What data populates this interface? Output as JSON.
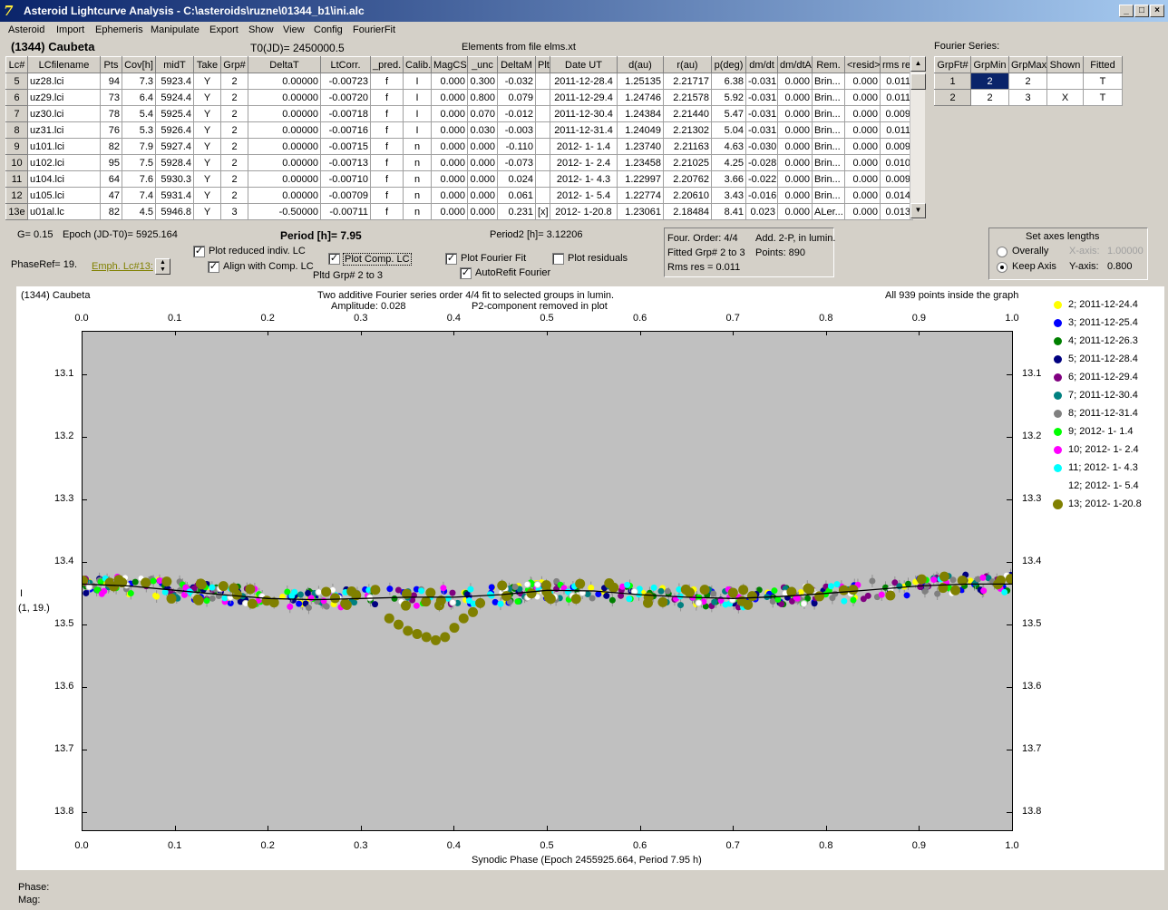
{
  "window": {
    "title": "Asteroid Lightcurve Analysis - C:\\asteroids\\ruzne\\01344_b1\\ini.alc",
    "min": "_",
    "max": "□",
    "close": "×"
  },
  "menu": [
    "Asteroid",
    "Import",
    "Ephemeris",
    "Manipulate",
    "Export",
    "Show",
    "View",
    "Config",
    "FourierFit"
  ],
  "header": {
    "object": "(1344) Caubeta",
    "t0": "T0(JD)= 2450000.5",
    "elements": "Elements from file elms.xt",
    "fourier_label": "Fourier Series:"
  },
  "lc_table": {
    "columns": [
      "Lc#",
      "LCfilename",
      "Pts",
      "Cov[h]",
      "midT",
      "Take",
      "Grp#",
      "DeltaT",
      "LtCorr.",
      "_pred.",
      "Calib.",
      "MagCS",
      "_unc",
      "DeltaM",
      "Plt",
      "Date UT",
      "d(au)",
      "r(au)",
      "p(deg)",
      "dm/dt",
      "dm/dtA",
      "Rem.",
      "<resid>",
      "rms res"
    ],
    "rows": [
      [
        "5",
        "uz28.lci",
        "94",
        "7.3",
        "5923.4",
        "Y",
        "2",
        "0.00000",
        "-0.00723",
        "f",
        "I",
        "0.000",
        "0.300",
        "-0.032",
        "",
        "2011-12-28.4",
        "1.25135",
        "2.21717",
        "6.38",
        "-0.031",
        "0.000",
        "Brin...",
        "0.000",
        "0.011"
      ],
      [
        "6",
        "uz29.lci",
        "73",
        "6.4",
        "5924.4",
        "Y",
        "2",
        "0.00000",
        "-0.00720",
        "f",
        "I",
        "0.000",
        "0.800",
        "0.079",
        "",
        "2011-12-29.4",
        "1.24746",
        "2.21578",
        "5.92",
        "-0.031",
        "0.000",
        "Brin...",
        "0.000",
        "0.011"
      ],
      [
        "7",
        "uz30.lci",
        "78",
        "5.4",
        "5925.4",
        "Y",
        "2",
        "0.00000",
        "-0.00718",
        "f",
        "I",
        "0.000",
        "0.070",
        "-0.012",
        "",
        "2011-12-30.4",
        "1.24384",
        "2.21440",
        "5.47",
        "-0.031",
        "0.000",
        "Brin...",
        "0.000",
        "0.009"
      ],
      [
        "8",
        "uz31.lci",
        "76",
        "5.3",
        "5926.4",
        "Y",
        "2",
        "0.00000",
        "-0.00716",
        "f",
        "I",
        "0.000",
        "0.030",
        "-0.003",
        "",
        "2011-12-31.4",
        "1.24049",
        "2.21302",
        "5.04",
        "-0.031",
        "0.000",
        "Brin...",
        "0.000",
        "0.011"
      ],
      [
        "9",
        "u101.lci",
        "82",
        "7.9",
        "5927.4",
        "Y",
        "2",
        "0.00000",
        "-0.00715",
        "f",
        "n",
        "0.000",
        "0.000",
        "-0.110",
        "",
        "2012- 1- 1.4",
        "1.23740",
        "2.21163",
        "4.63",
        "-0.030",
        "0.000",
        "Brin...",
        "0.000",
        "0.009"
      ],
      [
        "10",
        "u102.lci",
        "95",
        "7.5",
        "5928.4",
        "Y",
        "2",
        "0.00000",
        "-0.00713",
        "f",
        "n",
        "0.000",
        "0.000",
        "-0.073",
        "",
        "2012- 1- 2.4",
        "1.23458",
        "2.21025",
        "4.25",
        "-0.028",
        "0.000",
        "Brin...",
        "0.000",
        "0.010"
      ],
      [
        "11",
        "u104.lci",
        "64",
        "7.6",
        "5930.3",
        "Y",
        "2",
        "0.00000",
        "-0.00710",
        "f",
        "n",
        "0.000",
        "0.000",
        "0.024",
        "",
        "2012- 1- 4.3",
        "1.22997",
        "2.20762",
        "3.66",
        "-0.022",
        "0.000",
        "Brin...",
        "0.000",
        "0.009"
      ],
      [
        "12",
        "u105.lci",
        "47",
        "7.4",
        "5931.4",
        "Y",
        "2",
        "0.00000",
        "-0.00709",
        "f",
        "n",
        "0.000",
        "0.000",
        "0.061",
        "",
        "2012- 1- 5.4",
        "1.22774",
        "2.20610",
        "3.43",
        "-0.016",
        "0.000",
        "Brin...",
        "0.000",
        "0.014"
      ],
      [
        "13e",
        "u01al.lc",
        "82",
        "4.5",
        "5946.8",
        "Y",
        "3",
        "-0.50000",
        "-0.00711",
        "f",
        "n",
        "0.000",
        "0.000",
        "0.231",
        "[x]",
        "2012- 1-20.8",
        "1.23061",
        "2.18484",
        "8.41",
        "0.023",
        "0.000",
        "ALer...",
        "0.000",
        "0.013"
      ]
    ]
  },
  "fourier_table": {
    "columns": [
      "GrpFt#",
      "GrpMin",
      "GrpMax",
      "Shown",
      "Fitted"
    ],
    "rows": [
      [
        "1",
        "2",
        "2",
        "",
        "T"
      ],
      [
        "2",
        "2",
        "3",
        "X",
        "T"
      ]
    ]
  },
  "params": {
    "g": "G= 0.15",
    "epoch": "Epoch (JD-T0)= 5925.164",
    "period": "Period [h]= 7.95",
    "period2": "Period2 [h]= 3.12206",
    "phaseref": "PhaseRef= 19.",
    "emph": "Emph. Lc#13:",
    "plot_reduced": "Plot reduced indiv. LC",
    "align": "Align with Comp. LC",
    "plot_comp": "Plot Comp. LC",
    "pltd_grp": "Pltd Grp#  2   to   3",
    "plot_fourier": "Plot Fourier Fit",
    "autorefit": "AutoRefit Fourier",
    "plot_residuals": "Plot residuals"
  },
  "fit_info": {
    "order": "Four. Order:  4/4",
    "add": "Add. 2-P, in lumin.",
    "fitted": "Fitted Grp# 2 to 3",
    "points": "Points: 890",
    "rms": "Rms res    = 0.011"
  },
  "axes_box": {
    "title": "Set axes lengths",
    "overally": "Overally",
    "keep": "Keep Axis",
    "xlabel": "X-axis:",
    "xval": "1.00000",
    "ylabel": "Y-axis:",
    "yval": "0.800"
  },
  "plot": {
    "object": "(1344) Caubeta",
    "line1": "Two additive Fourier series order 4/4 fit to selected groups in lumin.",
    "amplitude": "Amplitude: 0.028",
    "p2": "P2-component removed in plot",
    "inside": "All 939 points inside the graph",
    "ylabel1": "I",
    "ylabel2": "(1, 19.)",
    "xlabel": "Synodic Phase (Epoch 2455925.664, Period 7.95 h)"
  },
  "chart_data": {
    "type": "scatter",
    "xlim": [
      0.0,
      1.0
    ],
    "ylim": [
      13.03,
      13.83
    ],
    "y_inverted": true,
    "x_ticks": [
      "0.0",
      "0.1",
      "0.2",
      "0.3",
      "0.4",
      "0.5",
      "0.6",
      "0.7",
      "0.8",
      "0.9",
      "1.0"
    ],
    "y_ticks": [
      "13.1",
      "13.2",
      "13.3",
      "13.4",
      "13.5",
      "13.6",
      "13.7",
      "13.8"
    ],
    "series": [
      {
        "name": "2; 2011-12-24.4",
        "color": "#ffff00"
      },
      {
        "name": "3; 2011-12-25.4",
        "color": "#0000ff"
      },
      {
        "name": "4; 2011-12-26.3",
        "color": "#008000"
      },
      {
        "name": "5; 2011-12-28.4",
        "color": "#000080"
      },
      {
        "name": "6; 2011-12-29.4",
        "color": "#800080"
      },
      {
        "name": "7; 2011-12-30.4",
        "color": "#008080"
      },
      {
        "name": "8; 2011-12-31.4",
        "color": "#808080"
      },
      {
        "name": "9; 2012- 1- 1.4",
        "color": "#00ff00"
      },
      {
        "name": "10; 2012- 1- 2.4",
        "color": "#ff00ff"
      },
      {
        "name": "11; 2012- 1- 4.3",
        "color": "#00ffff"
      },
      {
        "name": "12; 2012- 1- 5.4",
        "color": "#ffffff"
      },
      {
        "name": "13; 2012- 1-20.8",
        "color": "#808000"
      }
    ],
    "fourier_fit": {
      "x": [
        0.0,
        0.05,
        0.1,
        0.15,
        0.2,
        0.25,
        0.3,
        0.35,
        0.4,
        0.45,
        0.5,
        0.55,
        0.6,
        0.65,
        0.7,
        0.75,
        0.8,
        0.85,
        0.9,
        0.95,
        1.0
      ],
      "y": [
        13.435,
        13.438,
        13.445,
        13.452,
        13.458,
        13.46,
        13.458,
        13.456,
        13.456,
        13.452,
        13.445,
        13.446,
        13.452,
        13.456,
        13.458,
        13.455,
        13.45,
        13.444,
        13.438,
        13.435,
        13.435
      ]
    },
    "dip": {
      "x": [
        0.33,
        0.34,
        0.35,
        0.36,
        0.37,
        0.38,
        0.39,
        0.4,
        0.41,
        0.42
      ],
      "y": [
        13.49,
        13.5,
        13.51,
        13.515,
        13.52,
        13.525,
        13.52,
        13.505,
        13.49,
        13.48
      ]
    }
  },
  "status": {
    "phase": "Phase:",
    "mag": "Mag:"
  }
}
